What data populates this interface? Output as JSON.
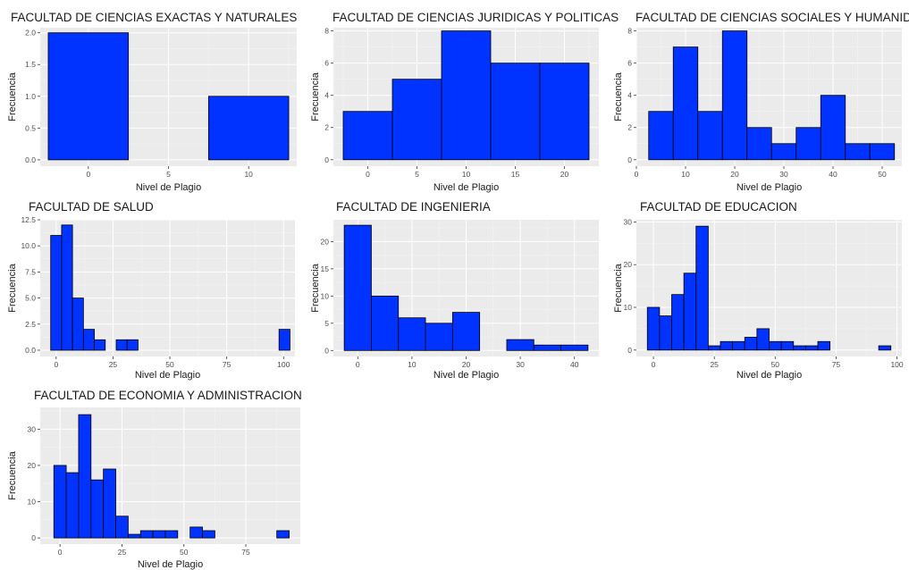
{
  "chart_data": [
    {
      "type": "bar",
      "title": "FACULTAD DE CIENCIAS EXACTAS Y NATURALES",
      "xlabel": "Nivel de Plagio",
      "ylabel": "Frecuencia",
      "xlim": [
        -3,
        13
      ],
      "ylim": [
        -0.1,
        2.08
      ],
      "xticks": [
        0,
        5,
        10
      ],
      "yticks": [
        0.0,
        0.5,
        1.0,
        1.5,
        2.0
      ],
      "ytick_labels": [
        "0.0",
        "0.5",
        "1.0",
        "1.5",
        "2.0"
      ],
      "grid": true,
      "bins": [
        {
          "x0": -2.5,
          "x1": 2.5,
          "count": 2
        },
        {
          "x0": 2.5,
          "x1": 7.5,
          "count": 0
        },
        {
          "x0": 7.5,
          "x1": 12.5,
          "count": 1
        }
      ]
    },
    {
      "type": "bar",
      "title": "FACULTAD DE CIENCIAS JURIDICAS Y POLITICAS",
      "xlabel": "Nivel de Plagio",
      "ylabel": "Frecuencia",
      "xlim": [
        -3.5,
        23.5
      ],
      "ylim": [
        -0.4,
        8.2
      ],
      "xticks": [
        0,
        5,
        10,
        15,
        20
      ],
      "yticks": [
        0,
        2,
        4,
        6,
        8
      ],
      "ytick_labels": [
        "0",
        "2",
        "4",
        "6",
        "8"
      ],
      "grid": true,
      "bins": [
        {
          "x0": -2.5,
          "x1": 2.5,
          "count": 3
        },
        {
          "x0": 2.5,
          "x1": 7.5,
          "count": 5
        },
        {
          "x0": 7.5,
          "x1": 12.5,
          "count": 8
        },
        {
          "x0": 12.5,
          "x1": 17.5,
          "count": 6
        },
        {
          "x0": 17.5,
          "x1": 22.5,
          "count": 6
        }
      ]
    },
    {
      "type": "bar",
      "title": "FACULTAD DE CIENCIAS SOCIALES Y HUMANIDADES",
      "xlabel": "Nivel de Plagio",
      "ylabel": "Frecuencia",
      "xlim": [
        0,
        54
      ],
      "ylim": [
        -0.4,
        8.2
      ],
      "xticks": [
        0,
        10,
        20,
        30,
        40,
        50
      ],
      "yticks": [
        0,
        2,
        4,
        6,
        8
      ],
      "ytick_labels": [
        "0",
        "2",
        "4",
        "6",
        "8"
      ],
      "grid": true,
      "bins": [
        {
          "x0": 2.5,
          "x1": 7.5,
          "count": 3
        },
        {
          "x0": 7.5,
          "x1": 12.5,
          "count": 7
        },
        {
          "x0": 12.5,
          "x1": 17.5,
          "count": 3
        },
        {
          "x0": 17.5,
          "x1": 22.5,
          "count": 8
        },
        {
          "x0": 22.5,
          "x1": 27.5,
          "count": 2
        },
        {
          "x0": 27.5,
          "x1": 32.5,
          "count": 1
        },
        {
          "x0": 32.5,
          "x1": 37.5,
          "count": 2
        },
        {
          "x0": 37.5,
          "x1": 42.5,
          "count": 4
        },
        {
          "x0": 42.5,
          "x1": 47.5,
          "count": 1
        },
        {
          "x0": 47.5,
          "x1": 52.5,
          "count": 1
        }
      ]
    },
    {
      "type": "bar",
      "title": "FACULTAD DE SALUD",
      "xlabel": "Nivel de Plagio",
      "ylabel": "Frecuencia",
      "xlim": [
        -7,
        105
      ],
      "ylim": [
        -0.6,
        12.5
      ],
      "xticks": [
        0,
        25,
        50,
        75,
        100
      ],
      "yticks": [
        0.0,
        2.5,
        5.0,
        7.5,
        10.0,
        12.5
      ],
      "ytick_labels": [
        "0.0",
        "2.5",
        "5.0",
        "7.5",
        "10.0",
        "12.5"
      ],
      "grid": true,
      "bins": [
        {
          "x0": -2.4,
          "x1": 2.4,
          "count": 11
        },
        {
          "x0": 2.4,
          "x1": 7.2,
          "count": 12
        },
        {
          "x0": 7.2,
          "x1": 12.0,
          "count": 5
        },
        {
          "x0": 12.0,
          "x1": 16.8,
          "count": 2
        },
        {
          "x0": 16.8,
          "x1": 21.6,
          "count": 1
        },
        {
          "x0": 21.6,
          "x1": 26.4,
          "count": 0
        },
        {
          "x0": 26.4,
          "x1": 31.2,
          "count": 1
        },
        {
          "x0": 31.2,
          "x1": 36.0,
          "count": 1
        },
        {
          "x0": 36.0,
          "x1": 98.0,
          "count": 0
        },
        {
          "x0": 98.0,
          "x1": 102.8,
          "count": 2
        }
      ]
    },
    {
      "type": "bar",
      "title": "FACULTAD DE INGENIERIA",
      "xlabel": "Nivel de Plagio",
      "ylabel": "Frecuencia",
      "xlim": [
        -4.5,
        44.5
      ],
      "ylim": [
        -1.1,
        24
      ],
      "xticks": [
        0,
        10,
        20,
        30,
        40
      ],
      "yticks": [
        0,
        5,
        10,
        15,
        20
      ],
      "ytick_labels": [
        "0",
        "5",
        "10",
        "15",
        "20"
      ],
      "grid": true,
      "bins": [
        {
          "x0": -2.5,
          "x1": 2.5,
          "count": 23
        },
        {
          "x0": 2.5,
          "x1": 7.5,
          "count": 10
        },
        {
          "x0": 7.5,
          "x1": 12.5,
          "count": 6
        },
        {
          "x0": 12.5,
          "x1": 17.5,
          "count": 5
        },
        {
          "x0": 17.5,
          "x1": 22.5,
          "count": 7
        },
        {
          "x0": 22.5,
          "x1": 27.5,
          "count": 0
        },
        {
          "x0": 27.5,
          "x1": 32.5,
          "count": 2
        },
        {
          "x0": 32.5,
          "x1": 37.5,
          "count": 1
        },
        {
          "x0": 37.5,
          "x1": 42.5,
          "count": 1
        }
      ]
    },
    {
      "type": "bar",
      "title": "FACULTAD DE EDUCACION",
      "xlabel": "Nivel de Plagio",
      "ylabel": "Frecuencia",
      "xlim": [
        -7,
        102
      ],
      "ylim": [
        -1.5,
        30.5
      ],
      "xticks": [
        0,
        25,
        50,
        75,
        100
      ],
      "yticks": [
        0,
        10,
        20,
        30
      ],
      "ytick_labels": [
        "0",
        "10",
        "20",
        "30"
      ],
      "grid": true,
      "bins": [
        {
          "x0": -2.5,
          "x1": 2.5,
          "count": 10
        },
        {
          "x0": 2.5,
          "x1": 7.5,
          "count": 8
        },
        {
          "x0": 7.5,
          "x1": 12.5,
          "count": 13
        },
        {
          "x0": 12.5,
          "x1": 17.5,
          "count": 18
        },
        {
          "x0": 17.5,
          "x1": 22.5,
          "count": 29
        },
        {
          "x0": 22.5,
          "x1": 27.5,
          "count": 1
        },
        {
          "x0": 27.5,
          "x1": 32.5,
          "count": 2
        },
        {
          "x0": 32.5,
          "x1": 37.5,
          "count": 2
        },
        {
          "x0": 37.5,
          "x1": 42.5,
          "count": 3
        },
        {
          "x0": 42.5,
          "x1": 47.5,
          "count": 5
        },
        {
          "x0": 47.5,
          "x1": 52.5,
          "count": 2
        },
        {
          "x0": 52.5,
          "x1": 57.5,
          "count": 2
        },
        {
          "x0": 57.5,
          "x1": 62.5,
          "count": 1
        },
        {
          "x0": 62.5,
          "x1": 67.5,
          "count": 1
        },
        {
          "x0": 67.5,
          "x1": 72.5,
          "count": 2
        },
        {
          "x0": 72.5,
          "x1": 92.5,
          "count": 0
        },
        {
          "x0": 92.5,
          "x1": 97.5,
          "count": 1
        }
      ]
    },
    {
      "type": "bar",
      "title": "FACULTAD DE ECONOMIA Y ADMINISTRACION",
      "xlabel": "Nivel de Plagio",
      "ylabel": "Frecuencia",
      "xlim": [
        -8,
        97
      ],
      "ylim": [
        -1.7,
        36
      ],
      "xticks": [
        0,
        25,
        50,
        75
      ],
      "yticks": [
        0,
        10,
        20,
        30
      ],
      "ytick_labels": [
        "0",
        "10",
        "20",
        "30"
      ],
      "grid": true,
      "bins": [
        {
          "x0": -2.5,
          "x1": 2.5,
          "count": 20
        },
        {
          "x0": 2.5,
          "x1": 7.5,
          "count": 18
        },
        {
          "x0": 7.5,
          "x1": 12.5,
          "count": 34
        },
        {
          "x0": 12.5,
          "x1": 17.5,
          "count": 16
        },
        {
          "x0": 17.5,
          "x1": 22.5,
          "count": 19
        },
        {
          "x0": 22.5,
          "x1": 27.5,
          "count": 6
        },
        {
          "x0": 27.5,
          "x1": 32.5,
          "count": 1
        },
        {
          "x0": 32.5,
          "x1": 37.5,
          "count": 2
        },
        {
          "x0": 37.5,
          "x1": 42.5,
          "count": 2
        },
        {
          "x0": 42.5,
          "x1": 47.5,
          "count": 2
        },
        {
          "x0": 47.5,
          "x1": 52.5,
          "count": 0
        },
        {
          "x0": 52.5,
          "x1": 57.5,
          "count": 3
        },
        {
          "x0": 57.5,
          "x1": 62.5,
          "count": 2
        },
        {
          "x0": 62.5,
          "x1": 87.5,
          "count": 0
        },
        {
          "x0": 87.5,
          "x1": 92.5,
          "count": 2
        }
      ]
    }
  ]
}
